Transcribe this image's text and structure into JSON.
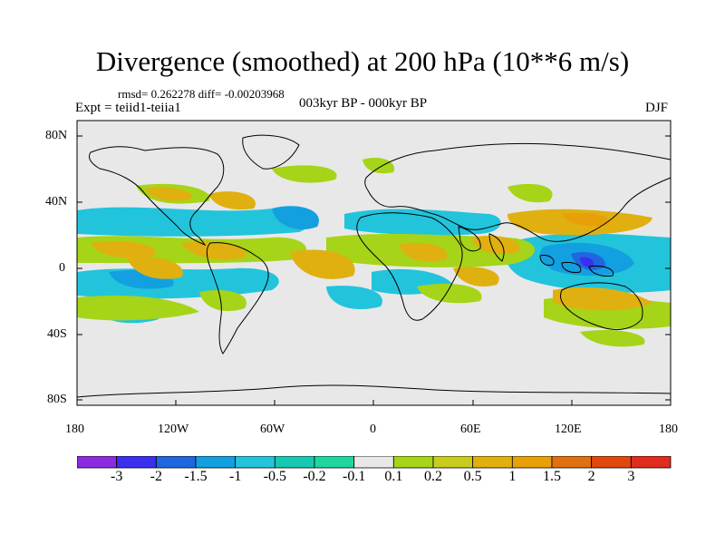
{
  "title": "Divergence (smoothed) at 200 hPa (10**6 m/s)",
  "stats": "rmsd= 0.262278 diff= -0.00203968",
  "experiment": "Expt = teiid1-teiia1",
  "period": "003kyr BP - 000kyr BP",
  "season": "DJF",
  "lat_labels": [
    "80N",
    "40N",
    "0",
    "40S",
    "80S"
  ],
  "lon_labels": [
    "180",
    "120W",
    "60W",
    "0",
    "60E",
    "120E",
    "180"
  ],
  "colorbar": {
    "colors": [
      "#8a2be2",
      "#3b2ff0",
      "#1f66e0",
      "#12a0e0",
      "#22c4dc",
      "#19c8b0",
      "#1fd6a0",
      "#e8e8e8",
      "#a6d418",
      "#c8cc1c",
      "#e0b010",
      "#e8a008",
      "#e07010",
      "#e04810",
      "#e02c1c"
    ],
    "labels": [
      "-3",
      "-2",
      "-1.5",
      "-1",
      "-0.5",
      "-0.2",
      "-0.1",
      "0.1",
      "0.2",
      "0.5",
      "1",
      "1.5",
      "2",
      "3"
    ]
  }
}
